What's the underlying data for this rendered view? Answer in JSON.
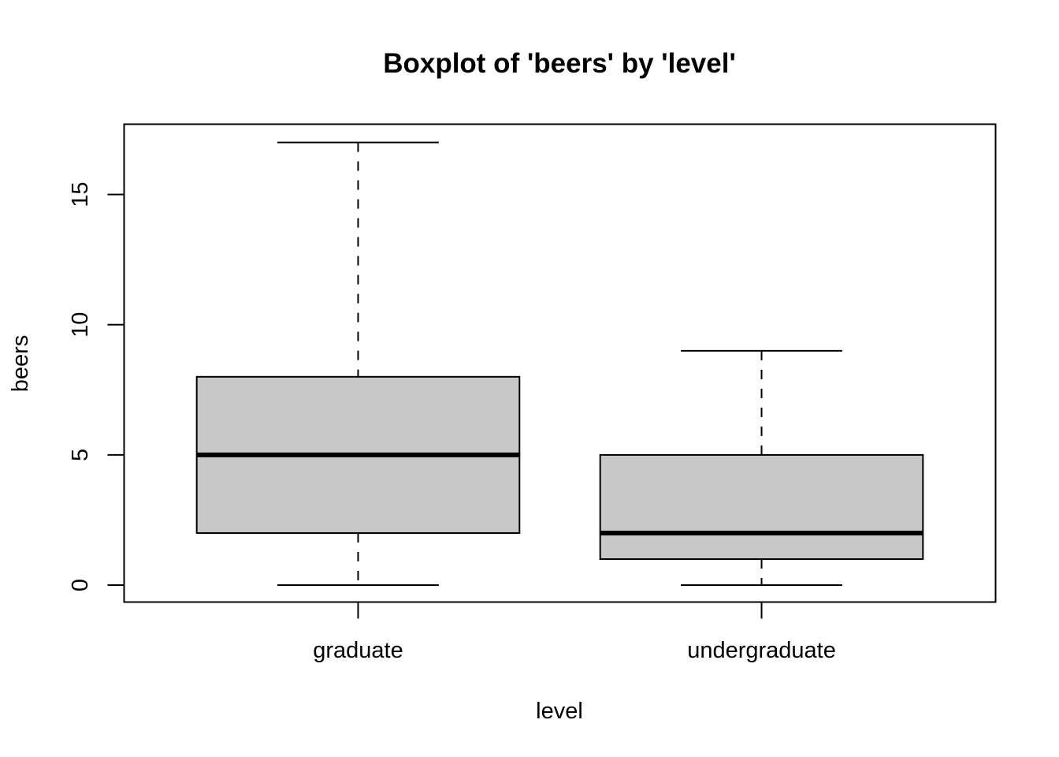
{
  "chart_data": {
    "type": "boxplot",
    "title": "Boxplot of 'beers' by 'level'",
    "xlabel": "level",
    "ylabel": "beers",
    "ylim": [
      -0.65,
      17.7
    ],
    "yticks": [
      0,
      5,
      10,
      15
    ],
    "ytick_labels": [
      "0",
      "5",
      "10",
      "15"
    ],
    "grid": false,
    "legend": "none",
    "box_fill": "#c8c8c8",
    "line_color": "#000000",
    "categories": [
      "graduate",
      "undergraduate"
    ],
    "boxes": [
      {
        "category": "graduate",
        "min": 0,
        "q1": 2,
        "median": 5,
        "q3": 8,
        "max": 17
      },
      {
        "category": "undergraduate",
        "min": 0,
        "q1": 1,
        "median": 2,
        "q3": 5,
        "max": 9
      }
    ]
  }
}
